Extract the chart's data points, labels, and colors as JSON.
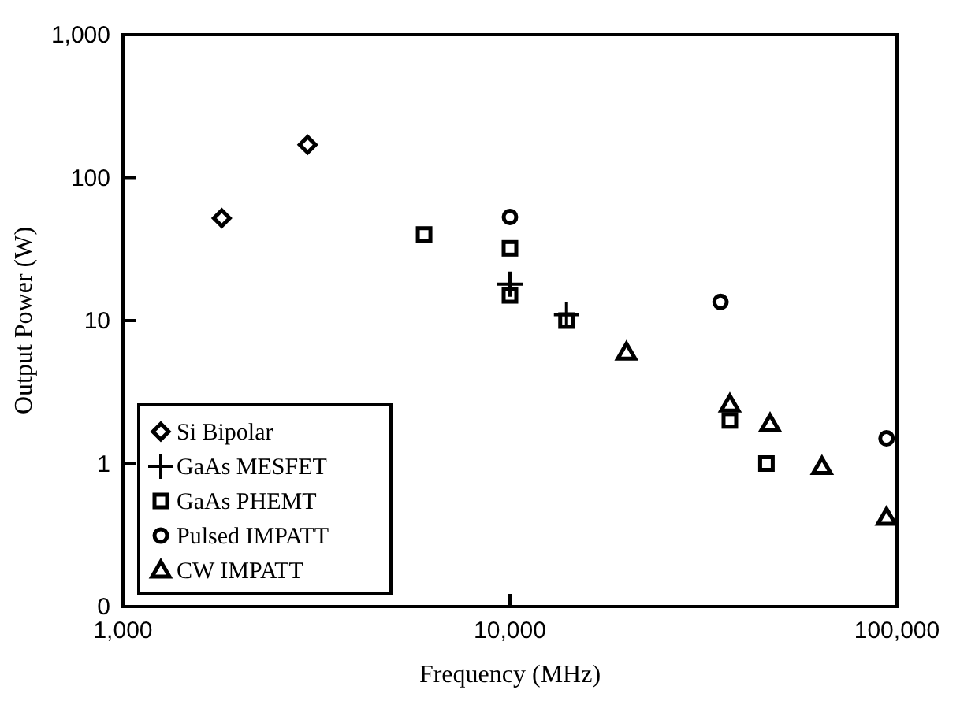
{
  "chart_data": {
    "type": "scatter",
    "xlabel": "Frequency (MHz)",
    "ylabel": "Output Power (W)",
    "log": "xy",
    "grid": false,
    "legend": "bottom left",
    "xlim": [
      1000,
      100000
    ],
    "xticks": [
      {
        "value": 1000,
        "label": "1,000"
      },
      {
        "value": 10000,
        "label": "10,000"
      },
      {
        "value": 100000,
        "label": "100,000"
      }
    ],
    "ylim": [
      0.1,
      1000
    ],
    "yticks": [
      {
        "value": 0.1,
        "label": "0"
      },
      1,
      10,
      100,
      {
        "value": 1000,
        "label": "1,000"
      }
    ],
    "series": [
      {
        "name": "Si Bipolar",
        "color": "#000000",
        "marker": "diamond",
        "x": [
          1800,
          3000
        ],
        "values": [
          52,
          170
        ]
      },
      {
        "name": "GaAs MESFET",
        "color": "#000000",
        "marker": "cross",
        "x": [
          10000,
          14000
        ],
        "values": [
          18,
          11
        ]
      },
      {
        "name": "GaAs PHEMT",
        "color": "#000000",
        "marker": "square",
        "x": [
          6000,
          10000,
          10000,
          14000,
          37000,
          46000
        ],
        "values": [
          40,
          32,
          15,
          10,
          2,
          1
        ]
      },
      {
        "name": "Pulsed IMPATT",
        "color": "#000000",
        "marker": "circle",
        "x": [
          10000,
          35000,
          94000
        ],
        "values": [
          53,
          13.5,
          1.5
        ]
      },
      {
        "name": "CW IMPATT",
        "color": "#000000",
        "marker": "triangle",
        "x": [
          20000,
          37000,
          47000,
          64000,
          94000
        ],
        "values": [
          6,
          2.6,
          1.9,
          0.95,
          0.42
        ]
      }
    ]
  }
}
